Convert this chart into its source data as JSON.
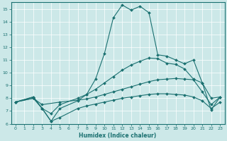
{
  "xlabel": "Humidex (Indice chaleur)",
  "xlim": [
    -0.5,
    23.5
  ],
  "ylim": [
    6,
    15.5
  ],
  "xticks": [
    0,
    1,
    2,
    3,
    4,
    5,
    6,
    7,
    8,
    9,
    10,
    11,
    12,
    13,
    14,
    15,
    16,
    17,
    18,
    19,
    20,
    21,
    22,
    23
  ],
  "yticks": [
    6,
    7,
    8,
    9,
    10,
    11,
    12,
    13,
    14,
    15
  ],
  "bg_color": "#cce8e8",
  "grid_color": "#b0d4d4",
  "line_color": "#1a7070",
  "lines": [
    {
      "x": [
        0,
        2,
        3,
        4,
        5,
        7,
        8,
        9,
        10,
        11,
        12,
        13,
        14,
        15,
        16,
        17,
        18,
        19,
        20,
        21,
        22,
        23
      ],
      "y": [
        7.7,
        8.1,
        7.2,
        6.2,
        7.2,
        7.8,
        8.3,
        9.5,
        11.5,
        14.3,
        15.3,
        14.9,
        15.2,
        14.7,
        11.4,
        11.3,
        11.0,
        10.7,
        11.0,
        9.2,
        7.1,
        8.1
      ]
    },
    {
      "x": [
        0,
        2,
        3,
        4,
        5,
        7,
        8,
        9,
        10,
        11,
        12,
        13,
        14,
        15,
        16,
        17,
        18,
        19,
        20,
        21,
        22,
        23
      ],
      "y": [
        7.7,
        8.1,
        7.2,
        6.8,
        7.5,
        8.0,
        8.3,
        8.7,
        9.2,
        9.7,
        10.2,
        10.6,
        10.9,
        11.15,
        11.1,
        10.75,
        10.65,
        10.3,
        9.5,
        9.2,
        8.0,
        8.1
      ]
    },
    {
      "x": [
        0,
        2,
        3,
        5,
        7,
        8,
        9,
        10,
        11,
        12,
        13,
        14,
        15,
        16,
        17,
        18,
        19,
        20,
        21,
        22,
        23
      ],
      "y": [
        7.7,
        8.0,
        7.5,
        7.7,
        7.85,
        7.95,
        8.1,
        8.3,
        8.5,
        8.7,
        8.9,
        9.1,
        9.3,
        9.45,
        9.5,
        9.55,
        9.5,
        9.45,
        8.5,
        7.5,
        8.1
      ]
    },
    {
      "x": [
        0,
        2,
        3,
        4,
        5,
        7,
        8,
        9,
        10,
        11,
        12,
        13,
        14,
        15,
        16,
        17,
        18,
        19,
        20,
        21,
        22,
        23
      ],
      "y": [
        7.7,
        8.0,
        7.2,
        6.2,
        6.5,
        7.2,
        7.4,
        7.55,
        7.7,
        7.85,
        8.0,
        8.1,
        8.2,
        8.3,
        8.35,
        8.35,
        8.3,
        8.25,
        8.1,
        7.8,
        7.2,
        7.7
      ]
    }
  ]
}
